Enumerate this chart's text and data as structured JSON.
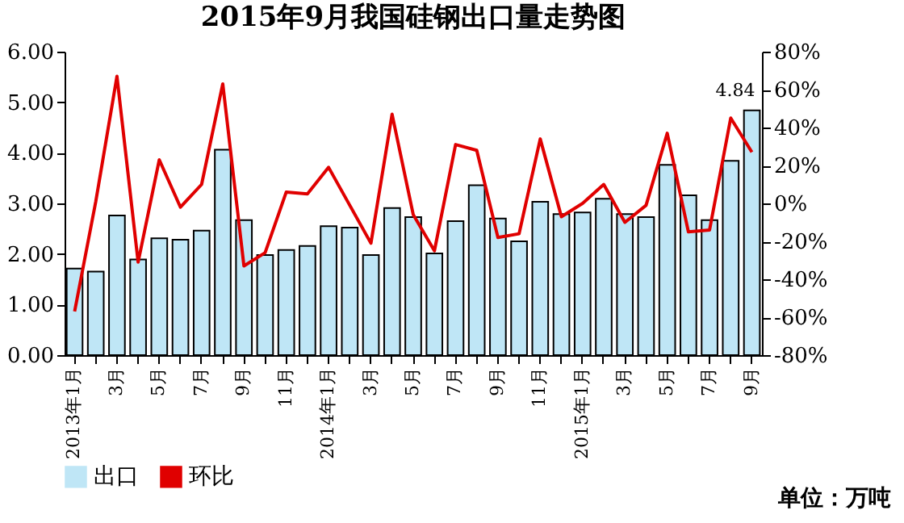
{
  "chart_data": {
    "type": "bar",
    "title": "2015年9月我国硅钢出口量走势图",
    "categories": [
      "2013年1月",
      null,
      "3月",
      null,
      "5月",
      null,
      "7月",
      null,
      "9月",
      null,
      "11月",
      null,
      "2014年1月",
      null,
      "3月",
      null,
      "5月",
      null,
      "7月",
      null,
      "9月",
      null,
      "11月",
      null,
      "2015年1月",
      null,
      "3月",
      null,
      "5月",
      null,
      "7月",
      null,
      "9月"
    ],
    "series": [
      {
        "name": "出口",
        "color": "#bfe6f6",
        "values": [
          1.71,
          1.65,
          2.76,
          1.89,
          2.31,
          2.28,
          2.46,
          4.06,
          2.67,
          1.98,
          2.08,
          2.16,
          2.55,
          2.52,
          1.98,
          2.91,
          2.73,
          2.01,
          2.65,
          3.36,
          2.7,
          2.25,
          3.03,
          2.79,
          2.82,
          3.09,
          2.79,
          2.73,
          3.76,
          3.16,
          2.67,
          3.84,
          4.84
        ],
        "value_labels": [
          null,
          null,
          null,
          null,
          null,
          null,
          null,
          null,
          null,
          null,
          null,
          null,
          null,
          null,
          null,
          null,
          null,
          null,
          null,
          null,
          null,
          null,
          null,
          null,
          null,
          null,
          null,
          null,
          null,
          null,
          null,
          null,
          "4.84"
        ]
      },
      {
        "name": "环比",
        "type": "line",
        "axis": "y2",
        "color": "#e00000",
        "values": [
          -57,
          1,
          67,
          -31,
          23,
          -2,
          10,
          63,
          -33,
          -26,
          6,
          5,
          19,
          -1,
          -21,
          47,
          -6,
          -25,
          31,
          28,
          -18,
          -16,
          34,
          -7,
          0,
          10,
          -10,
          -1,
          37,
          -15,
          -14,
          45,
          27
        ]
      }
    ],
    "ylim": [
      0,
      6
    ],
    "yticks": [
      {
        "value": 0,
        "label": "0.00"
      },
      {
        "value": 1,
        "label": "1.00"
      },
      {
        "value": 2,
        "label": "2.00"
      },
      {
        "value": 3,
        "label": "3.00"
      },
      {
        "value": 4,
        "label": "4.00"
      },
      {
        "value": 5,
        "label": "5.00"
      },
      {
        "value": 6,
        "label": "6.00"
      }
    ],
    "y2lim": [
      -80,
      80
    ],
    "y2ticks": [
      {
        "value": -80,
        "label": "-80%"
      },
      {
        "value": -60,
        "label": "-60%"
      },
      {
        "value": -40,
        "label": "-40%"
      },
      {
        "value": -20,
        "label": "-20%"
      },
      {
        "value": 0,
        "label": "0%"
      },
      {
        "value": 20,
        "label": "20%"
      },
      {
        "value": 40,
        "label": "40%"
      },
      {
        "value": 60,
        "label": "60%"
      },
      {
        "value": 80,
        "label": "80%"
      }
    ],
    "grid": false,
    "legend": "bottom",
    "marker": "none",
    "line_style": "solid",
    "annotations": [
      "单位：万吨"
    ]
  }
}
